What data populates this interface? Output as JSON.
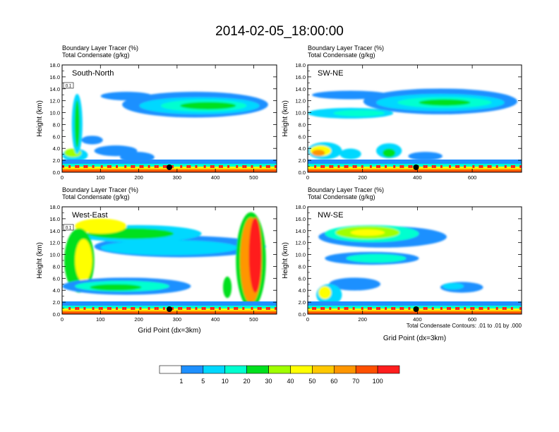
{
  "figure": {
    "title": "2014-02-05_18:00:00",
    "colorbar_labels": [
      "1",
      "5",
      "10",
      "20",
      "30",
      "40",
      "50",
      "60",
      "70",
      "100"
    ],
    "colorbar_colors": [
      "#ffffff",
      "#1e90ff",
      "#00d8ff",
      "#00ffd0",
      "#00e01e",
      "#a0ff00",
      "#ffff00",
      "#ffc800",
      "#ff9600",
      "#ff5000",
      "#ff1e1e"
    ],
    "contour_note": "Total Condensate Contours: .01 to .01 by .000"
  },
  "chart_data": [
    {
      "type": "heatmap",
      "panel_label": "South-North",
      "subtitle_line1": "Boundary Layer Tracer    (%)",
      "subtitle_line2": "Total Condensate    (g/kg)",
      "ylabel": "Height (km)",
      "xlabel": "",
      "xlim": [
        0,
        560
      ],
      "ylim": [
        0,
        18
      ],
      "xticks": [
        0,
        100,
        200,
        300,
        400,
        500
      ],
      "yticks": [
        "0.0",
        "2.0",
        "4.0",
        "6.0",
        "8.0",
        "10.0",
        "12.0",
        "14.0",
        "16.0",
        "18.0"
      ],
      "marker_x": 280,
      "contour_box_label": "0.1"
    },
    {
      "type": "heatmap",
      "panel_label": "SW-NE",
      "subtitle_line1": "Boundary Layer Tracer    (%)",
      "subtitle_line2": "Total Condensate    (g/kg)",
      "ylabel": "Height (km)",
      "xlabel": "",
      "xlim": [
        0,
        780
      ],
      "ylim": [
        0,
        18
      ],
      "xticks": [
        0,
        200,
        400,
        600
      ],
      "yticks": [
        "0.0",
        "2.0",
        "4.0",
        "6.0",
        "8.0",
        "10.0",
        "12.0",
        "14.0",
        "16.0",
        "18.0"
      ],
      "marker_x": 395,
      "contour_box_label": ""
    },
    {
      "type": "heatmap",
      "panel_label": "West-East",
      "subtitle_line1": "Boundary Layer Tracer    (%)",
      "subtitle_line2": "Total Condensate    (g/kg)",
      "ylabel": "Height (km)",
      "xlabel": "Grid Point (dx=3km)",
      "xlim": [
        0,
        560
      ],
      "ylim": [
        0,
        18
      ],
      "xticks": [
        0,
        100,
        200,
        300,
        400,
        500
      ],
      "yticks": [
        "0.0",
        "2.0",
        "4.0",
        "6.0",
        "8.0",
        "10.0",
        "12.0",
        "14.0",
        "16.0",
        "18.0"
      ],
      "marker_x": 280,
      "contour_box_label": "0.1"
    },
    {
      "type": "heatmap",
      "panel_label": "NW-SE",
      "subtitle_line1": "Boundary Layer Tracer    (%)",
      "subtitle_line2": "Total Condensate    (g/kg)",
      "ylabel": "Height (km)",
      "xlabel": "Grid Point (dx=3km)",
      "xlim": [
        0,
        780
      ],
      "ylim": [
        0,
        18
      ],
      "xticks": [
        0,
        200,
        400,
        600
      ],
      "yticks": [
        "0.0",
        "2.0",
        "4.0",
        "6.0",
        "8.0",
        "10.0",
        "12.0",
        "14.0",
        "16.0",
        "18.0"
      ],
      "marker_x": 395,
      "contour_box_label": ""
    }
  ]
}
